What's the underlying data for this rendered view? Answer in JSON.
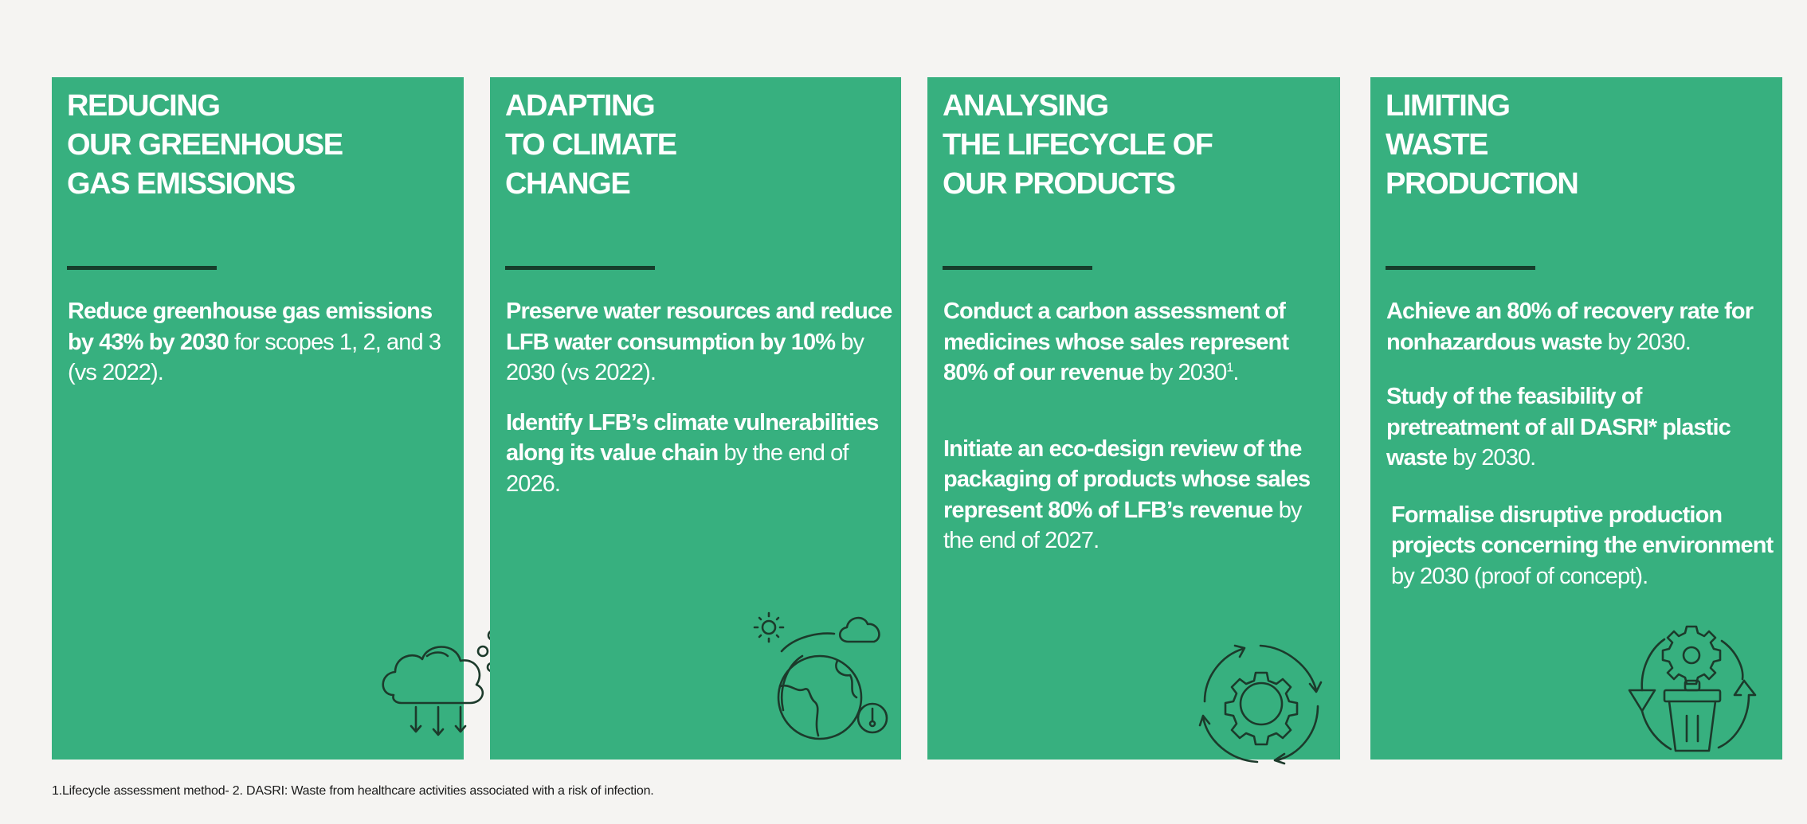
{
  "colors": {
    "background": "#f5f4f2",
    "card": "#37b07f",
    "divider": "#163d2b",
    "icon": "#1c3a2b"
  },
  "cards": [
    {
      "title_lines": [
        "REDUCING",
        "OUR GREENHOUSE",
        "GAS EMISSIONS"
      ],
      "icon": "cloud-emissions-icon",
      "paragraphs": [
        [
          {
            "t": "Reduce greenhouse gas emissions by 43% by 2030",
            "b": true
          },
          {
            "t": " for scopes 1, 2, and 3 (vs 2022).",
            "b": false
          }
        ]
      ]
    },
    {
      "title_lines": [
        "ADAPTING",
        "TO CLIMATE",
        "CHANGE"
      ],
      "icon": "globe-climate-icon",
      "paragraphs": [
        [
          {
            "t": "Preserve water resources and reduce LFB water consumption by 10%",
            "b": true
          },
          {
            "t": " by 2030 (vs 2022).",
            "b": false
          }
        ],
        [
          {
            "t": "Identify LFB’s climate vulnerabilities along its value chain",
            "b": true
          },
          {
            "t": " by the end of 2026.",
            "b": false
          }
        ]
      ]
    },
    {
      "title_lines": [
        "ANALYSING",
        "THE LIFECYCLE OF",
        "OUR PRODUCTS"
      ],
      "icon": "gear-cycle-icon",
      "paragraphs": [
        [
          {
            "t": "Conduct a carbon assessment of medicines whose sales represent 80% of our revenue",
            "b": true
          },
          {
            "t": " by 2030",
            "b": false
          },
          {
            "t": "1",
            "sup": true
          },
          {
            "t": ".",
            "b": false
          }
        ],
        [
          {
            "t": "Initiate an eco-design review of the packaging of products whose sales represent 80% of LFB’s revenue",
            "b": true
          },
          {
            "t": " by the end of 2027.",
            "b": false
          }
        ]
      ]
    },
    {
      "title_lines": [
        "LIMITING",
        "WASTE",
        "PRODUCTION"
      ],
      "icon": "recycle-bin-icon",
      "paragraphs": [
        [
          {
            "t": "Achieve an 80% of recovery rate for nonhazardous waste",
            "b": true
          },
          {
            "t": " by 2030.",
            "b": false
          }
        ],
        [
          {
            "t": "Study of the feasibility of pretreatment of all DASRI* plastic waste",
            "b": true
          },
          {
            "t": " by 2030.",
            "b": false
          }
        ],
        [
          {
            "t": "Formalise disruptive production projects concerning the environment",
            "b": true
          },
          {
            "t": " by 2030 (proof of concept).",
            "b": false
          }
        ]
      ]
    }
  ],
  "footnote": "1.Lifecycle assessment method- 2. DASRI: Waste from healthcare activities associated with a risk of infection."
}
